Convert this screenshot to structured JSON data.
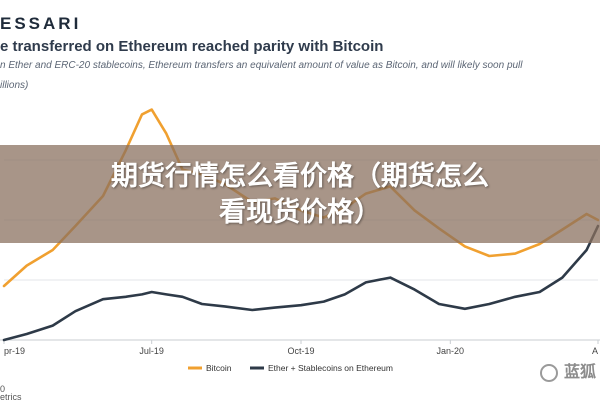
{
  "header": {
    "brand": "ESSARI",
    "title": "e transferred on Ethereum reached parity with Bitcoin",
    "subtitle": "n Ether and ERC-20 stablecoins, Ethereum transfers an equivalent amount of value as Bitcoin, and will likely soon pull",
    "unit": "illions)"
  },
  "overlay": {
    "headline_line1": "期货行情怎么看价格（期货怎么",
    "headline_line2": "看现货价格）"
  },
  "watermark": {
    "text": "蓝狐",
    "icon": "fox-logo-icon"
  },
  "source": {
    "line1": "0",
    "line2": "etrics"
  },
  "chart_data": {
    "type": "line",
    "title": "e transferred on Ethereum reached parity with Bitcoin",
    "x_tick_labels": [
      "pr-19",
      "Jul-19",
      "Oct-19",
      "Jan-20",
      "A"
    ],
    "x_range": [
      "2019-04-01",
      "2020-04-01"
    ],
    "grid": "horizontal",
    "legend_position": "bottom",
    "colors": {
      "bitcoin": "#F0A030",
      "ethereum": "#2E3A48",
      "grid": "#E3E6EA"
    },
    "series": [
      {
        "name": "Bitcoin",
        "x": [
          "2019-04-01",
          "2019-04-15",
          "2019-05-01",
          "2019-05-15",
          "2019-06-01",
          "2019-06-15",
          "2019-06-25",
          "2019-07-01",
          "2019-07-10",
          "2019-07-20",
          "2019-08-01",
          "2019-08-15",
          "2019-09-01",
          "2019-09-15",
          "2019-10-01",
          "2019-10-15",
          "2019-10-28",
          "2019-11-10",
          "2019-11-25",
          "2019-12-10",
          "2019-12-25",
          "2020-01-10",
          "2020-01-25",
          "2020-02-10",
          "2020-02-25",
          "2020-03-10",
          "2020-03-25",
          "2020-04-01"
        ],
        "y": [
          0.45,
          0.62,
          0.75,
          0.95,
          1.2,
          1.58,
          1.88,
          1.92,
          1.72,
          1.42,
          1.38,
          1.3,
          1.15,
          1.18,
          1.08,
          1.02,
          1.1,
          1.22,
          1.28,
          1.08,
          0.93,
          0.78,
          0.7,
          0.72,
          0.8,
          0.92,
          1.05,
          1.0
        ]
      },
      {
        "name": "Ether + Stablecoins on Ethereum",
        "x": [
          "2019-04-01",
          "2019-04-15",
          "2019-05-01",
          "2019-05-15",
          "2019-06-01",
          "2019-06-15",
          "2019-06-25",
          "2019-07-01",
          "2019-07-10",
          "2019-07-20",
          "2019-08-01",
          "2019-08-15",
          "2019-09-01",
          "2019-09-15",
          "2019-10-01",
          "2019-10-15",
          "2019-10-28",
          "2019-11-10",
          "2019-11-25",
          "2019-12-10",
          "2019-12-25",
          "2020-01-10",
          "2020-01-25",
          "2020-02-10",
          "2020-02-25",
          "2020-03-10",
          "2020-03-25",
          "2020-04-01"
        ],
        "y": [
          0.0,
          0.05,
          0.12,
          0.24,
          0.34,
          0.36,
          0.38,
          0.4,
          0.38,
          0.36,
          0.3,
          0.28,
          0.25,
          0.27,
          0.29,
          0.32,
          0.38,
          0.48,
          0.52,
          0.42,
          0.3,
          0.26,
          0.3,
          0.36,
          0.4,
          0.52,
          0.75,
          0.95
        ]
      }
    ]
  }
}
